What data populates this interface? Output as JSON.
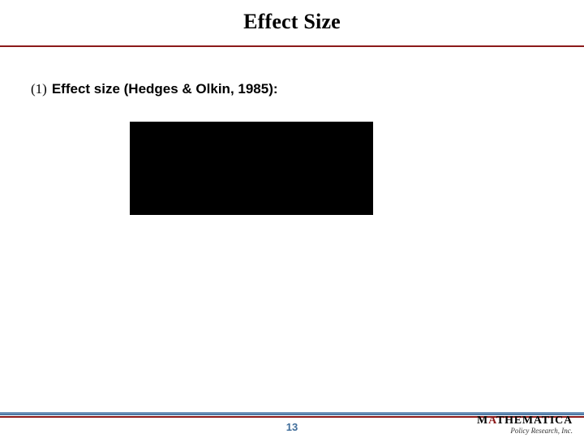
{
  "colors": {
    "rule": "#8b1a1a",
    "page_number": "#3f6d9a",
    "logo_accent": "#8b1a1a",
    "formula_bg": "#000000",
    "background": "#ffffff"
  },
  "header": {
    "title": "Effect Size"
  },
  "body": {
    "bullet_index": "(1)",
    "bullet_text": "Effect size (Hedges & Olkin, 1985):"
  },
  "footer": {
    "page_number": "13",
    "logo_main_pre": "M",
    "logo_main_accent": "A",
    "logo_main_post": "THEMATICA",
    "logo_sub": "Policy Research, Inc."
  }
}
